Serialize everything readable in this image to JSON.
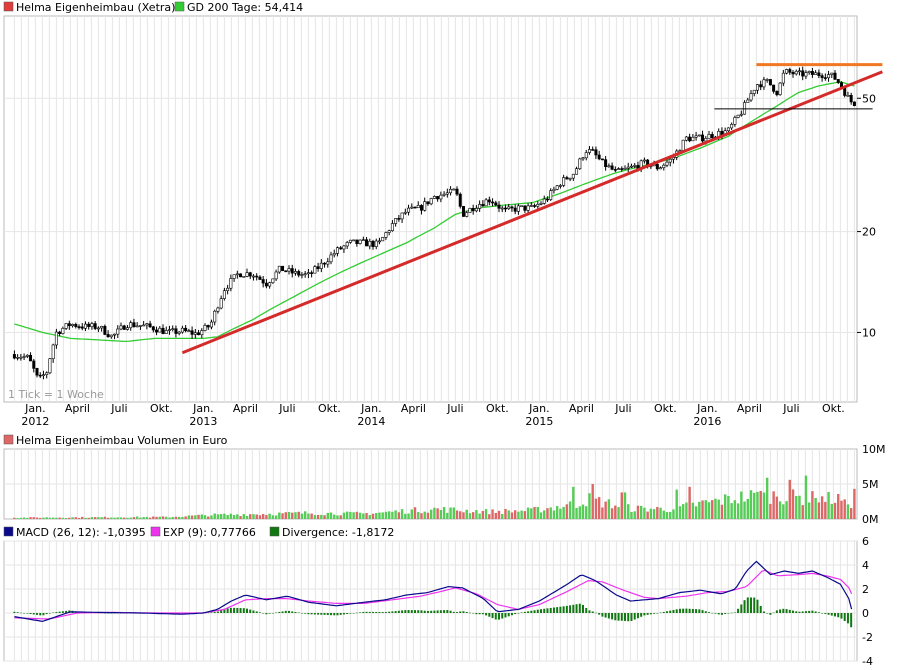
{
  "chart_data": [
    {
      "type": "candlestick",
      "legend_placement": "top-left",
      "legend": [
        {
          "label": "Helma Eigenheimbau (Xetra)",
          "color": "#e03c3c"
        },
        {
          "label": "GD 200 Tage: 54,414",
          "color": "#33cc33"
        }
      ],
      "note": "1 Tick = 1 Woche",
      "yscale": "log",
      "ylim": [
        6.2,
        88
      ],
      "y_ticks": [
        10,
        20,
        50
      ],
      "y_tick_labels": [
        "10",
        "20",
        "50"
      ],
      "x_ticks": [
        {
          "t": 0.5,
          "label": "Jan.",
          "year": "2012"
        },
        {
          "t": 3.5,
          "label": "April"
        },
        {
          "t": 6.5,
          "label": "Juli"
        },
        {
          "t": 9.5,
          "label": "Okt."
        },
        {
          "t": 12.5,
          "label": "Jan.",
          "year": "2013"
        },
        {
          "t": 15.5,
          "label": "April"
        },
        {
          "t": 18.5,
          "label": "Juli"
        },
        {
          "t": 21.5,
          "label": "Okt."
        },
        {
          "t": 24.5,
          "label": "Jan.",
          "year": "2014"
        },
        {
          "t": 27.5,
          "label": "April"
        },
        {
          "t": 30.5,
          "label": "Juli"
        },
        {
          "t": 33.5,
          "label": "Okt."
        },
        {
          "t": 36.5,
          "label": "Jan.",
          "year": "2015"
        },
        {
          "t": 39.5,
          "label": "April"
        },
        {
          "t": 42.5,
          "label": "Juli"
        },
        {
          "t": 45.5,
          "label": "Okt."
        },
        {
          "t": 48.5,
          "label": "Jan.",
          "year": "2016"
        },
        {
          "t": 51.5,
          "label": "April"
        },
        {
          "t": 54.5,
          "label": "Juli"
        },
        {
          "t": 57.5,
          "label": "Okt."
        }
      ],
      "price_anchors": [
        [
          -1,
          8.6
        ],
        [
          0,
          8.4
        ],
        [
          0.7,
          7.2
        ],
        [
          1.3,
          7.6
        ],
        [
          2,
          10
        ],
        [
          3,
          10.6
        ],
        [
          4,
          10.4
        ],
        [
          5,
          10.4
        ],
        [
          6,
          9.7
        ],
        [
          7,
          10.6
        ],
        [
          8,
          10.5
        ],
        [
          9,
          10.3
        ],
        [
          10,
          10
        ],
        [
          11,
          10.1
        ],
        [
          12,
          9.9
        ],
        [
          13,
          10.5
        ],
        [
          14,
          13.5
        ],
        [
          15,
          15
        ],
        [
          16,
          15
        ],
        [
          17,
          14
        ],
        [
          18,
          15.5
        ],
        [
          19,
          15
        ],
        [
          20,
          14.8
        ],
        [
          21,
          16
        ],
        [
          22,
          17.5
        ],
        [
          23,
          18.5
        ],
        [
          24,
          18.5
        ],
        [
          25,
          18.3
        ],
        [
          26,
          21
        ],
        [
          27,
          23
        ],
        [
          28,
          23.5
        ],
        [
          29,
          25.5
        ],
        [
          30,
          26
        ],
        [
          30.5,
          26.5
        ],
        [
          31,
          22.5
        ],
        [
          32,
          24
        ],
        [
          33,
          25
        ],
        [
          34,
          23
        ],
        [
          35,
          23.5
        ],
        [
          36,
          23.5
        ],
        [
          37,
          25
        ],
        [
          38,
          28
        ],
        [
          39,
          30
        ],
        [
          39.8,
          35
        ],
        [
          40.3,
          34.5
        ],
        [
          41,
          32
        ],
        [
          42,
          30
        ],
        [
          43,
          31
        ],
        [
          44,
          32
        ],
        [
          45,
          31
        ],
        [
          46,
          33
        ],
        [
          47,
          38
        ],
        [
          48,
          38
        ],
        [
          49,
          39
        ],
        [
          50,
          40
        ],
        [
          51,
          46
        ],
        [
          52,
          55
        ],
        [
          52.8,
          56
        ],
        [
          53.5,
          52
        ],
        [
          54,
          60
        ],
        [
          55,
          59
        ],
        [
          56,
          59
        ],
        [
          57,
          59
        ],
        [
          57.5,
          58
        ],
        [
          58,
          55
        ],
        [
          58.5,
          50.5
        ],
        [
          59,
          47.5
        ]
      ],
      "sma_label": "GD 200 Tage",
      "sma_anchors": [
        [
          -1,
          10.6
        ],
        [
          1,
          10
        ],
        [
          3,
          9.6
        ],
        [
          5,
          9.5
        ],
        [
          7,
          9.4
        ],
        [
          9,
          9.6
        ],
        [
          11,
          9.6
        ],
        [
          12.5,
          9.6
        ],
        [
          13.5,
          9.7
        ],
        [
          16,
          10.9
        ],
        [
          19,
          12.8
        ],
        [
          21,
          14.2
        ],
        [
          23,
          15.6
        ],
        [
          25,
          17
        ],
        [
          27,
          18.5
        ],
        [
          29,
          20.5
        ],
        [
          30.5,
          22.5
        ],
        [
          32,
          23.5
        ],
        [
          34,
          24
        ],
        [
          36,
          24.4
        ],
        [
          38,
          26
        ],
        [
          40,
          28
        ],
        [
          42,
          30
        ],
        [
          44,
          31.5
        ],
        [
          46,
          33
        ],
        [
          48,
          35.5
        ],
        [
          50,
          38.5
        ],
        [
          52,
          43.5
        ],
        [
          53.5,
          47.5
        ],
        [
          55,
          52
        ],
        [
          56.5,
          54.5
        ],
        [
          58,
          56
        ],
        [
          59,
          54.4
        ]
      ],
      "support_line": {
        "from": [
          11,
          8.7
        ],
        "to": [
          61,
          60
        ],
        "color": "#d42a2a"
      },
      "resistance_line": {
        "from": [
          52,
          63
        ],
        "to": [
          61,
          63
        ],
        "color": "#f07820"
      },
      "horizontal_line": {
        "from": [
          49,
          46.5
        ],
        "to": [
          60.3,
          46.5
        ],
        "color": "#000000"
      }
    },
    {
      "type": "bar",
      "title": "Helma Eigenheimbau Volumen in Euro",
      "ylim": [
        0,
        10
      ],
      "unit": "M",
      "y_ticks": [
        0,
        5,
        10
      ],
      "y_tick_labels": [
        "0M",
        "5M",
        "10M"
      ],
      "colors": {
        "up": "#55cc55",
        "down": "#dd6666"
      },
      "volume_anchors": [
        [
          -1,
          0.2
        ],
        [
          10,
          0.3
        ],
        [
          13,
          0.6
        ],
        [
          20,
          0.9
        ],
        [
          24,
          0.8
        ],
        [
          29,
          1.5
        ],
        [
          33,
          1.1
        ],
        [
          36,
          1.3
        ],
        [
          39,
          2.2
        ],
        [
          40,
          3.0
        ],
        [
          43,
          1.6
        ],
        [
          46,
          1.5
        ],
        [
          48,
          2.3
        ],
        [
          51,
          3.3
        ],
        [
          53,
          3.6
        ],
        [
          55,
          3.2
        ],
        [
          58,
          3.0
        ],
        [
          59.5,
          2.0
        ]
      ],
      "volume_spikes": [
        [
          39,
          4.6
        ],
        [
          40.2,
          5.0
        ],
        [
          42.5,
          3.8
        ],
        [
          46.3,
          4.2
        ],
        [
          47.3,
          4.6
        ],
        [
          52.2,
          4.0
        ],
        [
          52.8,
          5.9
        ],
        [
          53.4,
          3.2
        ],
        [
          54.3,
          5.6
        ],
        [
          55.6,
          6.2
        ],
        [
          56.2,
          3.0
        ],
        [
          58.3,
          2.8
        ],
        [
          59.1,
          4.3
        ]
      ]
    },
    {
      "type": "line",
      "legend": [
        {
          "label": "MACD (26, 12): -1,0395",
          "color": "#0a0a8c"
        },
        {
          "label": "EXP (9): 0,77766",
          "color": "#ee33ee"
        },
        {
          "label": "Divergence: -1,8172",
          "color": "#117711"
        }
      ],
      "ylim": [
        -4,
        6
      ],
      "y_ticks": [
        -4,
        -2,
        0,
        2,
        4,
        6
      ],
      "y_tick_labels": [
        "-4",
        "-2",
        "0",
        "2",
        "4",
        "6"
      ],
      "macd_anchors": [
        [
          -1,
          -0.3
        ],
        [
          1,
          -0.7
        ],
        [
          3,
          0.1
        ],
        [
          5,
          0.05
        ],
        [
          8,
          0
        ],
        [
          11,
          -0.1
        ],
        [
          12.5,
          0
        ],
        [
          13.5,
          0.3
        ],
        [
          14.5,
          1.0
        ],
        [
          15.5,
          1.5
        ],
        [
          17,
          1.1
        ],
        [
          18.5,
          1.4
        ],
        [
          20,
          0.9
        ],
        [
          22,
          0.6
        ],
        [
          24,
          0.9
        ],
        [
          25.5,
          1.1
        ],
        [
          27,
          1.5
        ],
        [
          28.5,
          1.7
        ],
        [
          30,
          2.2
        ],
        [
          31,
          2.1
        ],
        [
          32.5,
          1.2
        ],
        [
          33.5,
          0.1
        ],
        [
          35,
          0.3
        ],
        [
          36.5,
          1.0
        ],
        [
          38.5,
          2.4
        ],
        [
          39.5,
          3.2
        ],
        [
          40.5,
          2.7
        ],
        [
          42,
          1.5
        ],
        [
          43,
          1.0
        ],
        [
          44,
          1.1
        ],
        [
          45,
          1.2
        ],
        [
          46.5,
          1.7
        ],
        [
          48,
          1.9
        ],
        [
          49.5,
          1.6
        ],
        [
          50.5,
          2.0
        ],
        [
          51.3,
          3.5
        ],
        [
          52,
          4.3
        ],
        [
          53,
          3.2
        ],
        [
          54,
          3.5
        ],
        [
          55,
          3.3
        ],
        [
          56,
          3.5
        ],
        [
          57,
          3.0
        ],
        [
          58,
          2.4
        ],
        [
          58.7,
          1.0
        ],
        [
          59,
          -1.04
        ]
      ],
      "signal_anchors": [
        [
          -1,
          -0.4
        ],
        [
          1.5,
          -0.5
        ],
        [
          3.5,
          0
        ],
        [
          6,
          0.05
        ],
        [
          9,
          0
        ],
        [
          12.5,
          0
        ],
        [
          14,
          0.3
        ],
        [
          15.5,
          1.1
        ],
        [
          17,
          1.2
        ],
        [
          18.5,
          1.2
        ],
        [
          20,
          1.0
        ],
        [
          22,
          0.8
        ],
        [
          24,
          0.8
        ],
        [
          26,
          1.1
        ],
        [
          28,
          1.4
        ],
        [
          29.5,
          1.8
        ],
        [
          30.5,
          2.1
        ],
        [
          32,
          1.6
        ],
        [
          33.5,
          0.7
        ],
        [
          35,
          0.3
        ],
        [
          36.5,
          0.7
        ],
        [
          38.5,
          1.8
        ],
        [
          40,
          2.7
        ],
        [
          41,
          2.6
        ],
        [
          42.5,
          1.9
        ],
        [
          44,
          1.3
        ],
        [
          45,
          1.2
        ],
        [
          47,
          1.4
        ],
        [
          48.5,
          1.7
        ],
        [
          50,
          1.8
        ],
        [
          51.3,
          2.2
        ],
        [
          52.5,
          3.6
        ],
        [
          53.5,
          3.1
        ],
        [
          55,
          3.2
        ],
        [
          56,
          3.3
        ],
        [
          57,
          3.1
        ],
        [
          58,
          2.8
        ],
        [
          58.7,
          2.0
        ],
        [
          59,
          0.78
        ]
      ]
    }
  ]
}
